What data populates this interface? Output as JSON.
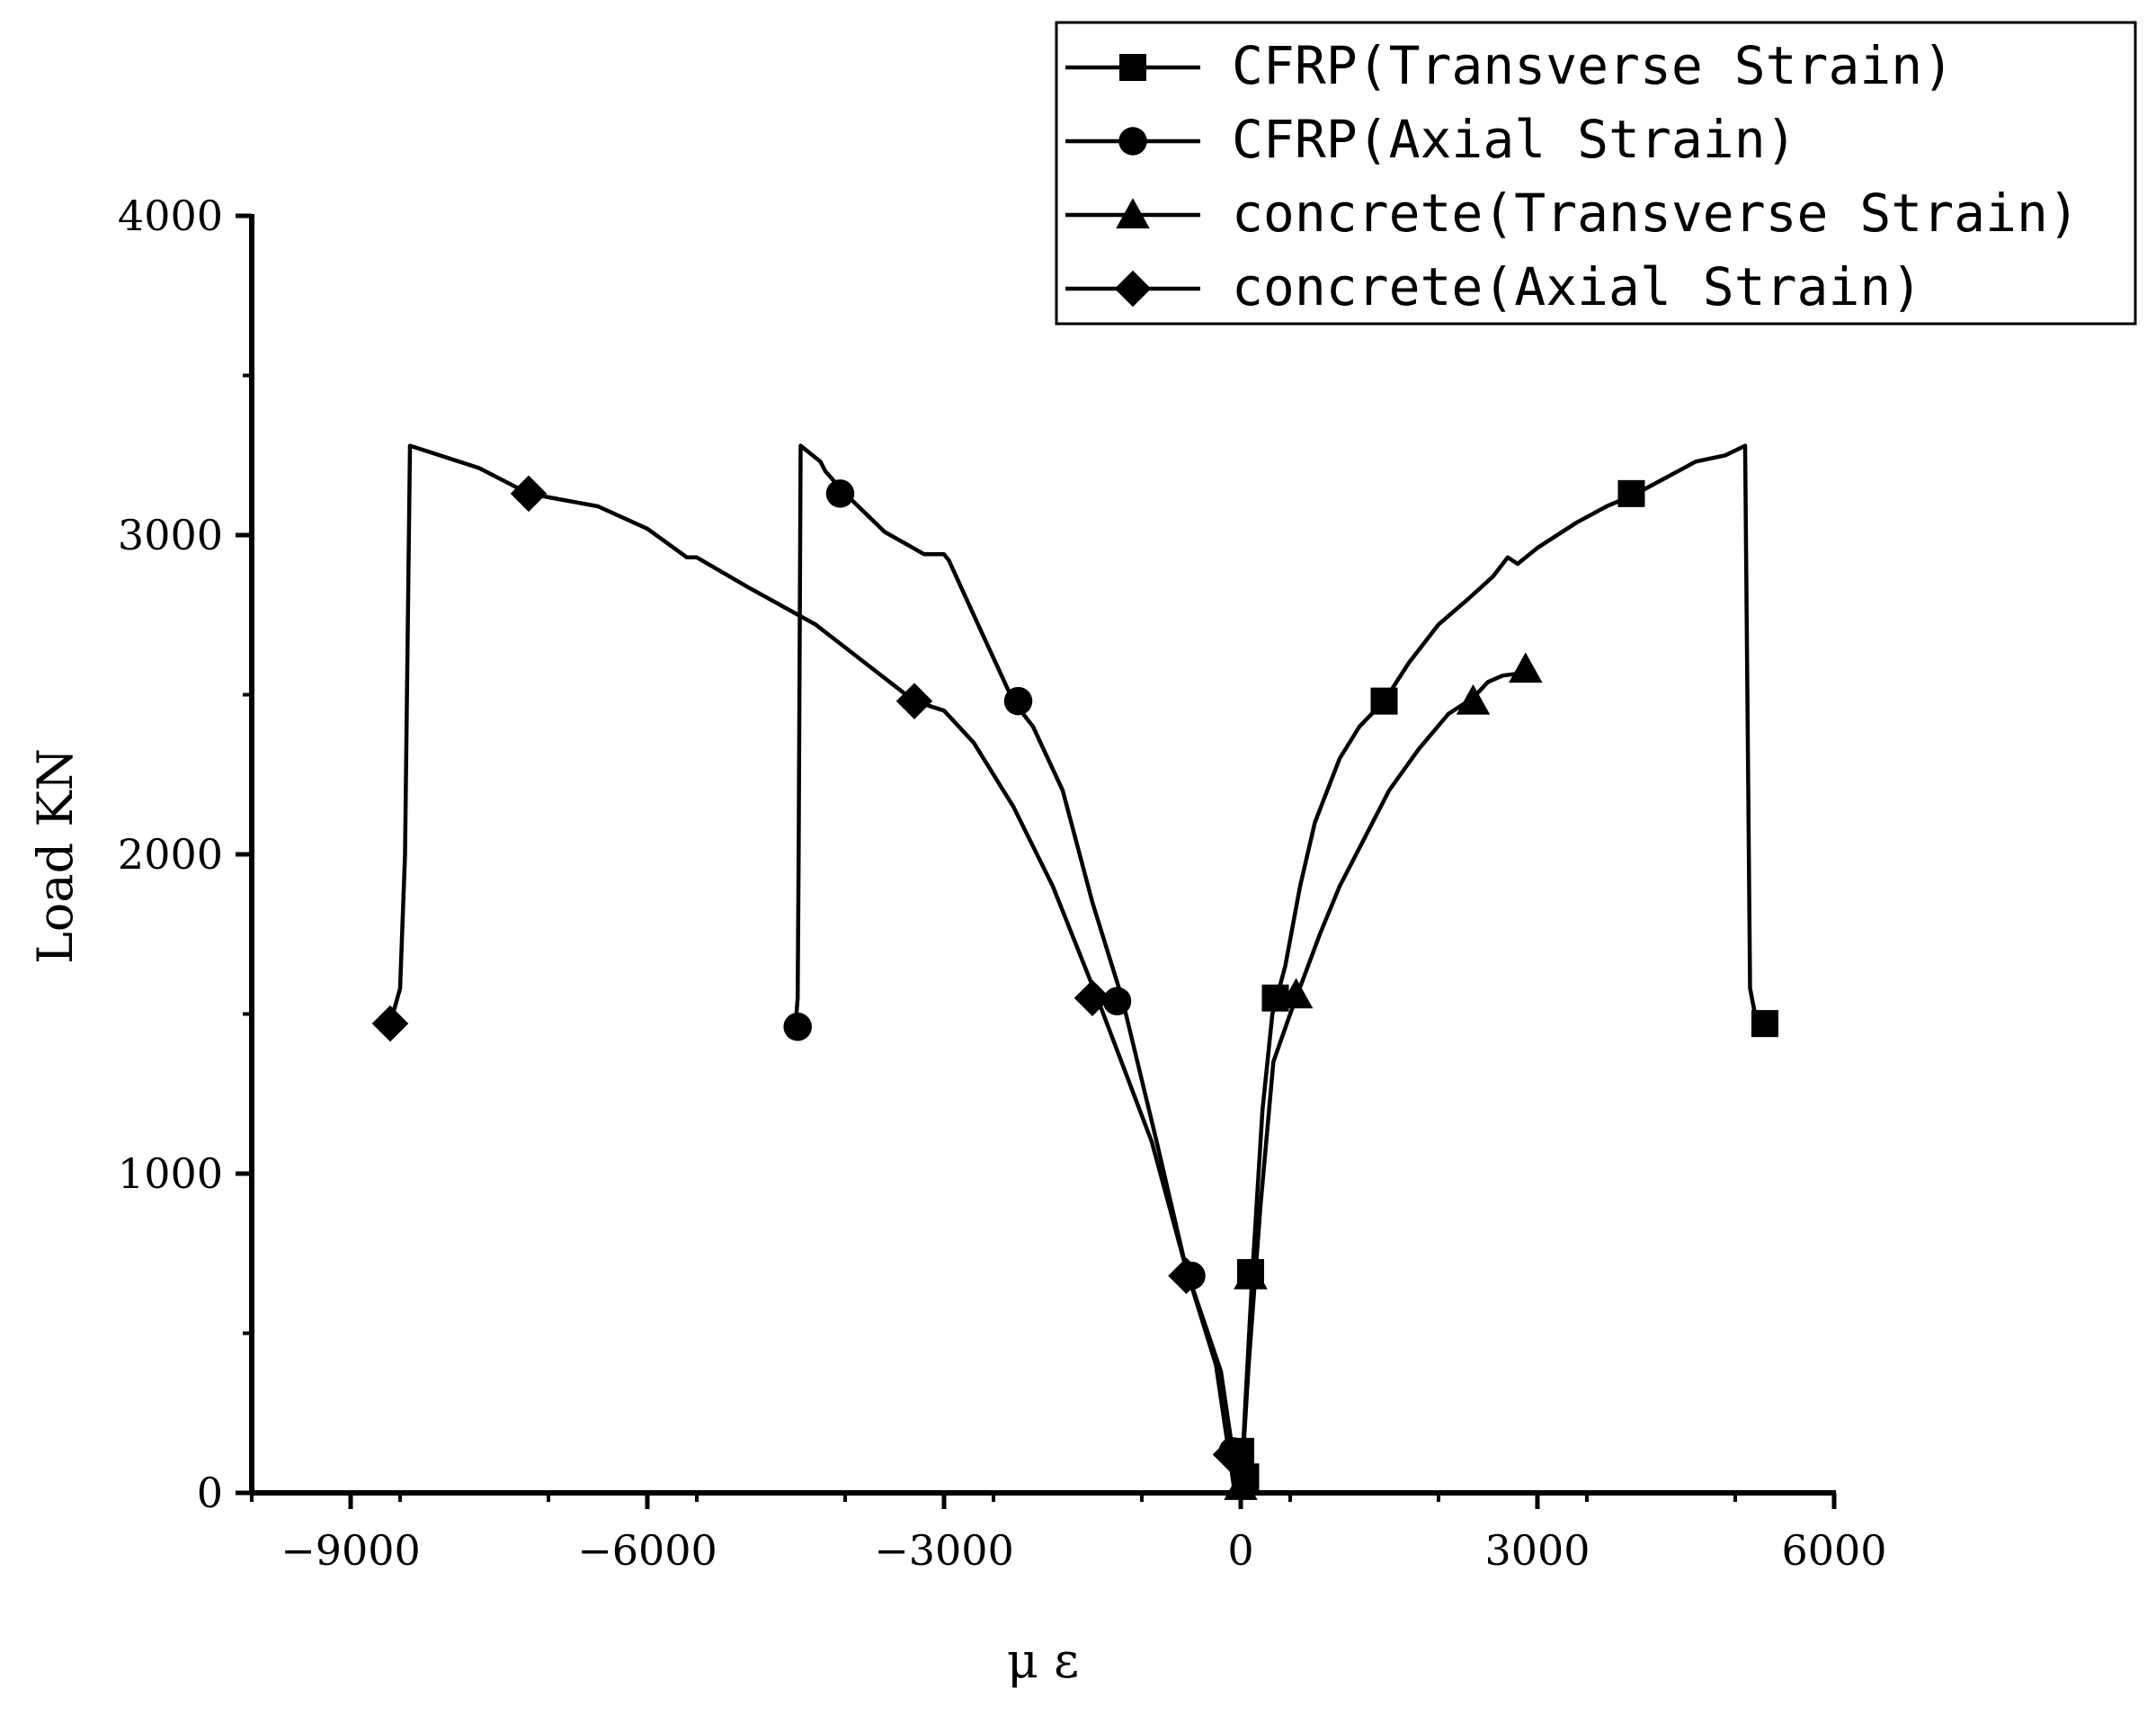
{
  "chart_data": {
    "type": "line",
    "xlabel": "μ ε",
    "ylabel": "Load KN",
    "xlim": [
      -10000,
      6000
    ],
    "ylim": [
      0,
      4000
    ],
    "xticks": [
      -9000,
      -6000,
      -3000,
      0,
      3000,
      6000
    ],
    "yticks": [
      0,
      1000,
      2000,
      3000,
      4000
    ],
    "x_minor_step": 1500,
    "y_minor_step": 500,
    "grid": false,
    "legend_position": "top-right",
    "series": [
      {
        "name": "CFRP(Transverse Strain)",
        "marker": "square",
        "color": "#000000",
        "curve": [
          [
            0,
            0
          ],
          [
            50,
            300
          ],
          [
            120,
            700
          ],
          [
            220,
            1200
          ],
          [
            320,
            1500
          ],
          [
            450,
            1650
          ],
          [
            600,
            1900
          ],
          [
            750,
            2100
          ],
          [
            1000,
            2300
          ],
          [
            1200,
            2400
          ],
          [
            1450,
            2480
          ],
          [
            1700,
            2600
          ],
          [
            2000,
            2720
          ],
          [
            2300,
            2800
          ],
          [
            2550,
            2870
          ],
          [
            2700,
            2930
          ],
          [
            2800,
            2910
          ],
          [
            3000,
            2960
          ],
          [
            3400,
            3040
          ],
          [
            3700,
            3090
          ],
          [
            4000,
            3130
          ],
          [
            4300,
            3180
          ],
          [
            4600,
            3230
          ],
          [
            4900,
            3250
          ],
          [
            5100,
            3280
          ],
          [
            5150,
            1580
          ],
          [
            5200,
            1500
          ],
          [
            5300,
            1470
          ]
        ],
        "markers": [
          [
            50,
            50
          ],
          [
            0,
            130
          ],
          [
            100,
            690
          ],
          [
            350,
            1550
          ],
          [
            1450,
            2480
          ],
          [
            3950,
            3130
          ],
          [
            5300,
            1470
          ]
        ]
      },
      {
        "name": "CFRP(Axial Strain)",
        "marker": "circle",
        "color": "#000000",
        "curve": [
          [
            -60,
            0
          ],
          [
            -250,
            400
          ],
          [
            -550,
            700
          ],
          [
            -850,
            1100
          ],
          [
            -1200,
            1550
          ],
          [
            -1500,
            1850
          ],
          [
            -1800,
            2200
          ],
          [
            -2100,
            2400
          ],
          [
            -2300,
            2480
          ],
          [
            -2700,
            2750
          ],
          [
            -2950,
            2920
          ],
          [
            -3000,
            2940
          ],
          [
            -3200,
            2940
          ],
          [
            -3600,
            3010
          ],
          [
            -4000,
            3130
          ],
          [
            -4200,
            3200
          ],
          [
            -4250,
            3230
          ],
          [
            -4450,
            3280
          ],
          [
            -4470,
            2000
          ],
          [
            -4480,
            1550
          ],
          [
            -4500,
            1470
          ]
        ],
        "markers": [
          [
            -80,
            130
          ],
          [
            -500,
            680
          ],
          [
            -1250,
            1540
          ],
          [
            -2250,
            2480
          ],
          [
            -4050,
            3130
          ],
          [
            -4480,
            1460
          ]
        ]
      },
      {
        "name": "concrete(Transverse Strain)",
        "marker": "triangle",
        "color": "#000000",
        "curve": [
          [
            0,
            0
          ],
          [
            80,
            400
          ],
          [
            200,
            900
          ],
          [
            330,
            1350
          ],
          [
            500,
            1500
          ],
          [
            620,
            1600
          ],
          [
            800,
            1750
          ],
          [
            1000,
            1900
          ],
          [
            1250,
            2050
          ],
          [
            1500,
            2200
          ],
          [
            1800,
            2330
          ],
          [
            2100,
            2440
          ],
          [
            2350,
            2490
          ],
          [
            2500,
            2540
          ],
          [
            2650,
            2560
          ],
          [
            2900,
            2570
          ]
        ],
        "markers": [
          [
            0,
            20
          ],
          [
            100,
            680
          ],
          [
            560,
            1560
          ],
          [
            2350,
            2480
          ],
          [
            2880,
            2580
          ]
        ]
      },
      {
        "name": "concrete(Axial Strain)",
        "marker": "diamond",
        "color": "#000000",
        "curve": [
          [
            -20,
            0
          ],
          [
            -200,
            380
          ],
          [
            -550,
            700
          ],
          [
            -900,
            1100
          ],
          [
            -1450,
            1550
          ],
          [
            -1900,
            1900
          ],
          [
            -2300,
            2150
          ],
          [
            -2700,
            2350
          ],
          [
            -3000,
            2450
          ],
          [
            -3300,
            2480
          ],
          [
            -3800,
            2600
          ],
          [
            -4300,
            2720
          ],
          [
            -5000,
            2840
          ],
          [
            -5500,
            2930
          ],
          [
            -5600,
            2930
          ],
          [
            -6000,
            3020
          ],
          [
            -6500,
            3090
          ],
          [
            -7200,
            3130
          ],
          [
            -7700,
            3210
          ],
          [
            -8000,
            3240
          ],
          [
            -8400,
            3280
          ],
          [
            -8450,
            2000
          ],
          [
            -8500,
            1580
          ],
          [
            -8600,
            1470
          ]
        ],
        "markers": [
          [
            -100,
            120
          ],
          [
            -550,
            680
          ],
          [
            -1500,
            1550
          ],
          [
            -3300,
            2480
          ],
          [
            -7200,
            3130
          ],
          [
            -8600,
            1470
          ]
        ]
      }
    ]
  }
}
